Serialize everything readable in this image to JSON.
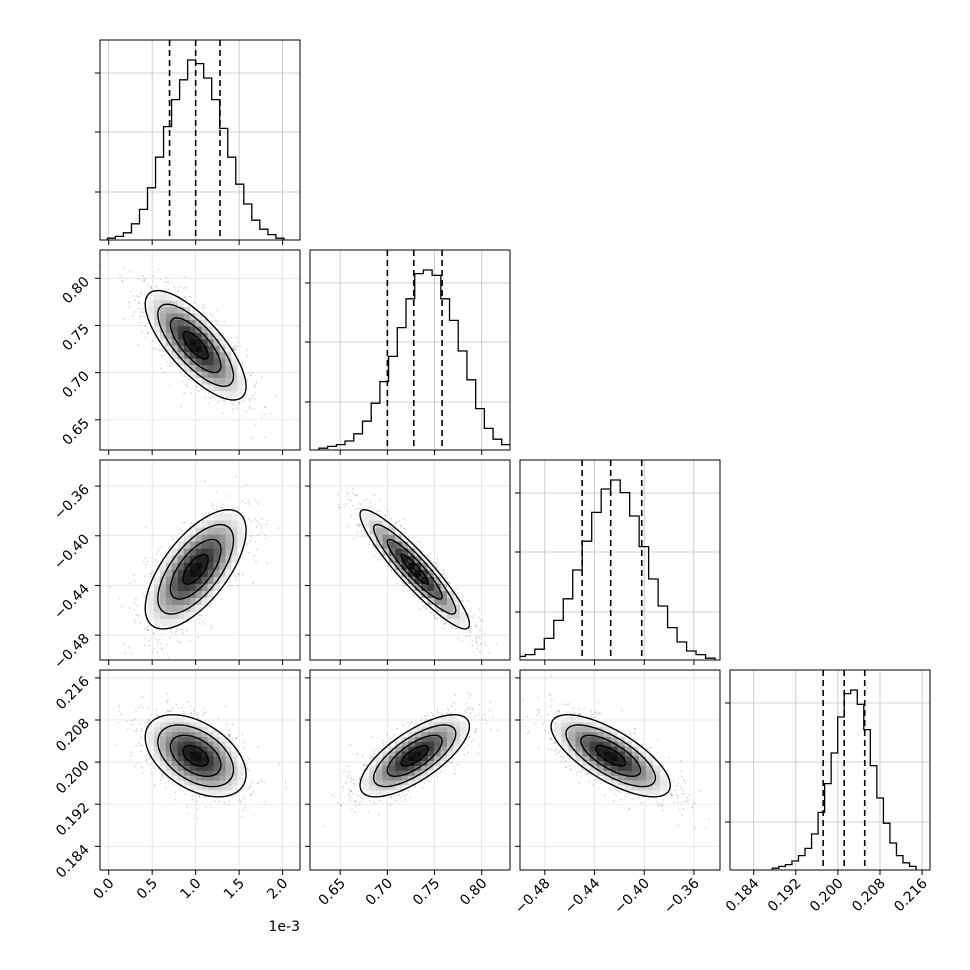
{
  "chart_data": {
    "type": "corner",
    "grid": true,
    "parameters": [
      {
        "range": [
          -0.1,
          2.2
        ],
        "offset_label": "1e-3",
        "ticks": [
          0.0,
          0.5,
          1.0,
          1.5,
          2.0
        ],
        "tick_labels": [
          "0.0",
          "0.5",
          "1.0",
          "1.5",
          "2.0"
        ],
        "quantiles": [
          0.7,
          1.0,
          1.28
        ],
        "mean": 1.0,
        "sigma": 0.29
      },
      {
        "range": [
          0.618,
          0.83
        ],
        "ticks": [
          0.65,
          0.7,
          0.75,
          0.8
        ],
        "tick_labels": [
          "0.65",
          "0.70",
          "0.75",
          "0.80"
        ],
        "quantiles": [
          0.7,
          0.728,
          0.758
        ],
        "mean": 0.729,
        "sigma": 0.029
      },
      {
        "range": [
          -0.5,
          -0.339
        ],
        "ticks": [
          -0.48,
          -0.44,
          -0.4,
          -0.36
        ],
        "tick_labels": [
          "−0.48",
          "−0.44",
          "−0.40",
          "−0.36"
        ],
        "quantiles": [
          -0.45,
          -0.427,
          -0.402
        ],
        "mean": -0.427,
        "sigma": 0.024
      },
      {
        "range": [
          0.1795,
          0.2175
        ],
        "ticks": [
          0.184,
          0.192,
          0.2,
          0.208,
          0.216
        ],
        "tick_labels": [
          "0.184",
          "0.192",
          "0.200",
          "0.208",
          "0.216"
        ],
        "quantiles": [
          0.1972,
          0.2012,
          0.2051
        ],
        "mean": 0.2012,
        "sigma": 0.0039
      }
    ],
    "correlations": [
      [
        1.0,
        -0.75,
        0.65,
        -0.45
      ],
      [
        -0.75,
        1.0,
        -0.92,
        0.72
      ],
      [
        0.65,
        -0.92,
        1.0,
        -0.72
      ],
      [
        -0.45,
        0.72,
        -0.72,
        1.0
      ]
    ],
    "histogram_counts": [
      [
        1,
        2,
        4,
        9,
        17,
        29,
        46,
        63,
        78,
        89,
        100,
        98,
        90,
        78,
        62,
        46,
        31,
        20,
        11,
        6,
        3,
        1
      ],
      [
        1,
        2,
        3,
        5,
        9,
        16,
        26,
        38,
        52,
        68,
        84,
        98,
        100,
        97,
        84,
        72,
        55,
        39,
        23,
        12,
        6,
        3
      ],
      [
        1,
        2,
        3,
        6,
        12,
        22,
        34,
        50,
        66,
        82,
        95,
        100,
        93,
        80,
        63,
        45,
        30,
        18,
        10,
        5,
        3,
        1
      ],
      [
        1,
        2,
        3,
        5,
        8,
        12,
        20,
        32,
        48,
        65,
        85,
        98,
        100,
        92,
        78,
        58,
        40,
        26,
        15,
        8,
        4,
        2
      ]
    ],
    "contour_levels_sigma": [
      0.5,
      1.0,
      1.5,
      2.0
    ]
  }
}
